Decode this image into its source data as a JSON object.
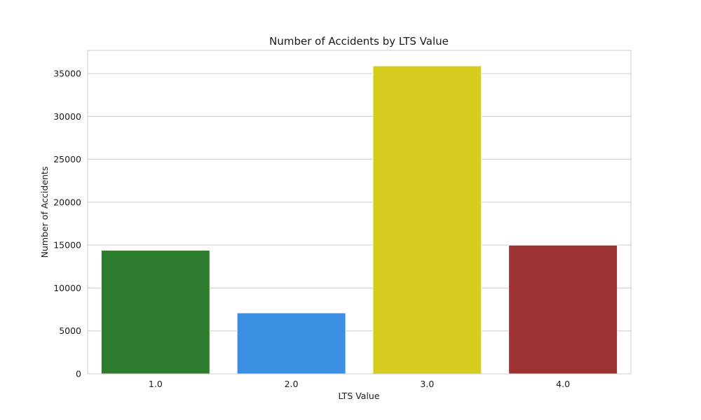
{
  "chart_data": {
    "type": "bar",
    "title": "Number of Accidents by LTS Value",
    "xlabel": "LTS Value",
    "ylabel": "Number of Accidents",
    "categories": [
      "1.0",
      "2.0",
      "3.0",
      "4.0"
    ],
    "values": [
      14400,
      7100,
      35900,
      15000
    ],
    "colors": [
      "#2e7d2e",
      "#3a8fe2",
      "#d6cc1e",
      "#9c3333"
    ],
    "ylim": [
      0,
      37700
    ],
    "yticks": [
      0,
      5000,
      10000,
      15000,
      20000,
      25000,
      30000,
      35000
    ],
    "grid": true,
    "grid_axis": "y"
  }
}
